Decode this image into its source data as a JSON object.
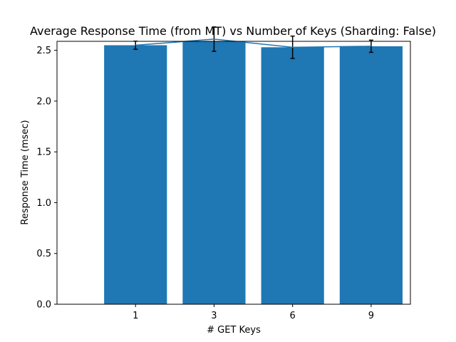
{
  "chart_data": {
    "type": "bar",
    "title": "Average Response Time (from MT) vs Number of Keys (Sharding: False)",
    "xlabel": "# GET Keys",
    "ylabel": "Response Time (msec)",
    "categories": [
      "1",
      "3",
      "6",
      "9"
    ],
    "values": [
      2.55,
      2.61,
      2.53,
      2.54
    ],
    "errors": [
      0.04,
      0.12,
      0.11,
      0.06
    ],
    "line_overlay": true,
    "ylim": [
      0.0,
      2.5884
    ],
    "xlim": [
      -1.0,
      3.5
    ],
    "yticks": [
      "0.0",
      "0.5",
      "1.0",
      "1.5",
      "2.0",
      "2.5"
    ],
    "ytick_values": [
      0.0,
      0.5,
      1.0,
      1.5,
      2.0,
      2.5
    ],
    "grid": false,
    "colors": {
      "bar": "#1f77b4",
      "line": "#1f77b4",
      "errorbar": "#000000"
    }
  }
}
